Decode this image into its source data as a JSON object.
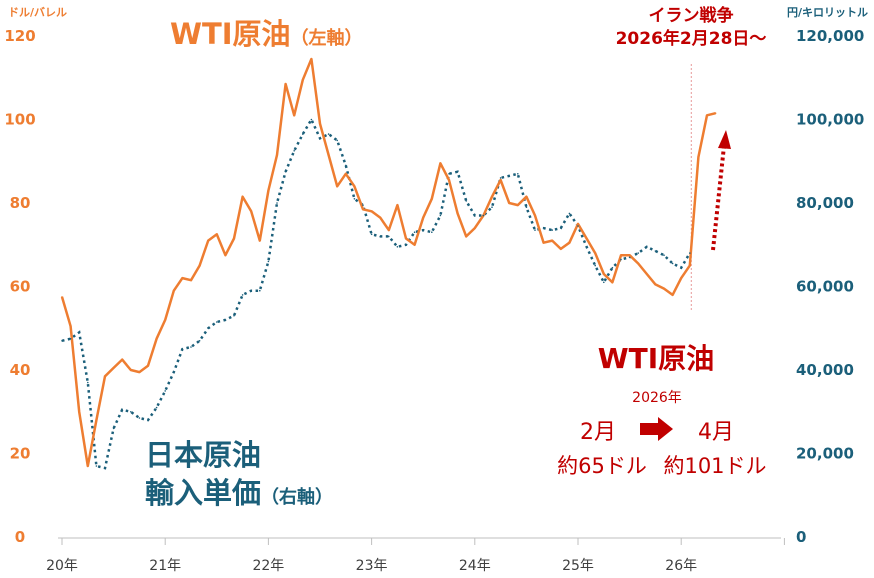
{
  "colors": {
    "wti": "#ee7d31",
    "japan": "#1b5f7a",
    "war": "#c00000",
    "axis": "#bfbfbf",
    "text_gray": "#404040"
  },
  "labels": {
    "left_unit": "ドル/バレル",
    "right_unit": "円/キロリットル",
    "wti_title_main": "WTI原油",
    "wti_title_sub": "（左軸）",
    "japan_line1": "日本原油",
    "japan_line2": "輸入単価",
    "japan_sub": "（右軸）",
    "war_line1": "イラン戦争",
    "war_line2": "2026年2月28日～",
    "box_title": "WTI原油",
    "box_year": "2026年",
    "box_from_month": "2月",
    "box_to_month": "4月",
    "box_from_value": "約65ドル",
    "box_to_value": "約101ドル"
  },
  "chart_data": {
    "type": "line",
    "x_unit": "month",
    "x_ticks": [
      "20年",
      "21年",
      "22年",
      "23年",
      "24年",
      "25年",
      "26年"
    ],
    "y_left": {
      "label": "ドル/バレル",
      "range": [
        0,
        120
      ],
      "ticks": [
        "0",
        "20",
        "40",
        "60",
        "80",
        "100",
        "120"
      ]
    },
    "y_right": {
      "label": "円/キロリットル",
      "range": [
        0,
        120000
      ],
      "ticks": [
        "0",
        "20,000",
        "40,000",
        "60,000",
        "80,000",
        "100,000",
        "120,000"
      ]
    },
    "series": [
      {
        "name": "WTI原油（左軸）",
        "axis": "left",
        "style": "solid",
        "start": "2020-01",
        "values": [
          57.5,
          50.5,
          30,
          17,
          28,
          38.5,
          40.5,
          42.5,
          40,
          39.5,
          41,
          47.5,
          52,
          59,
          62,
          61.5,
          65,
          71,
          72.5,
          67.5,
          71.5,
          81.5,
          78,
          71,
          83,
          91.5,
          108.5,
          101,
          109.5,
          114.5,
          99,
          91.5,
          84,
          87,
          84,
          78.5,
          78,
          76.5,
          73.5,
          79.5,
          71.5,
          70,
          76.5,
          81,
          89.5,
          85.5,
          77.5,
          72,
          74,
          77,
          81.5,
          85.5,
          80,
          79.5,
          81.5,
          77,
          70.5,
          71,
          69,
          70.5,
          75,
          71.5,
          68,
          63,
          61,
          67.5,
          67.5,
          65.5,
          63,
          60.5,
          59.5,
          58,
          62,
          65,
          91,
          101,
          101.5
        ]
      },
      {
        "name": "日本原油輸入単価（右軸）",
        "axis": "right",
        "style": "dotted",
        "start": "2020-01",
        "values": [
          47000,
          47500,
          49000,
          37000,
          17000,
          16500,
          26000,
          30500,
          30000,
          28500,
          28000,
          31000,
          35000,
          39500,
          45000,
          45500,
          47000,
          50000,
          51500,
          52000,
          53000,
          58000,
          59000,
          59000,
          66000,
          80000,
          87500,
          92500,
          96500,
          100000,
          95500,
          96500,
          95000,
          89000,
          81000,
          79500,
          72500,
          72000,
          72000,
          69500,
          70000,
          73000,
          73500,
          73000,
          77000,
          87000,
          87500,
          80500,
          77000,
          77000,
          79000,
          86000,
          86500,
          87000,
          79000,
          73500,
          74000,
          73500,
          74000,
          77500,
          74500,
          69500,
          65000,
          61000,
          64500,
          66500,
          67000,
          68000,
          69500,
          68500,
          67500,
          65500,
          64500,
          68000
        ]
      }
    ],
    "annotations": {
      "event": "イラン戦争 2026年2月28日～",
      "event_month": "2026-02"
    }
  }
}
